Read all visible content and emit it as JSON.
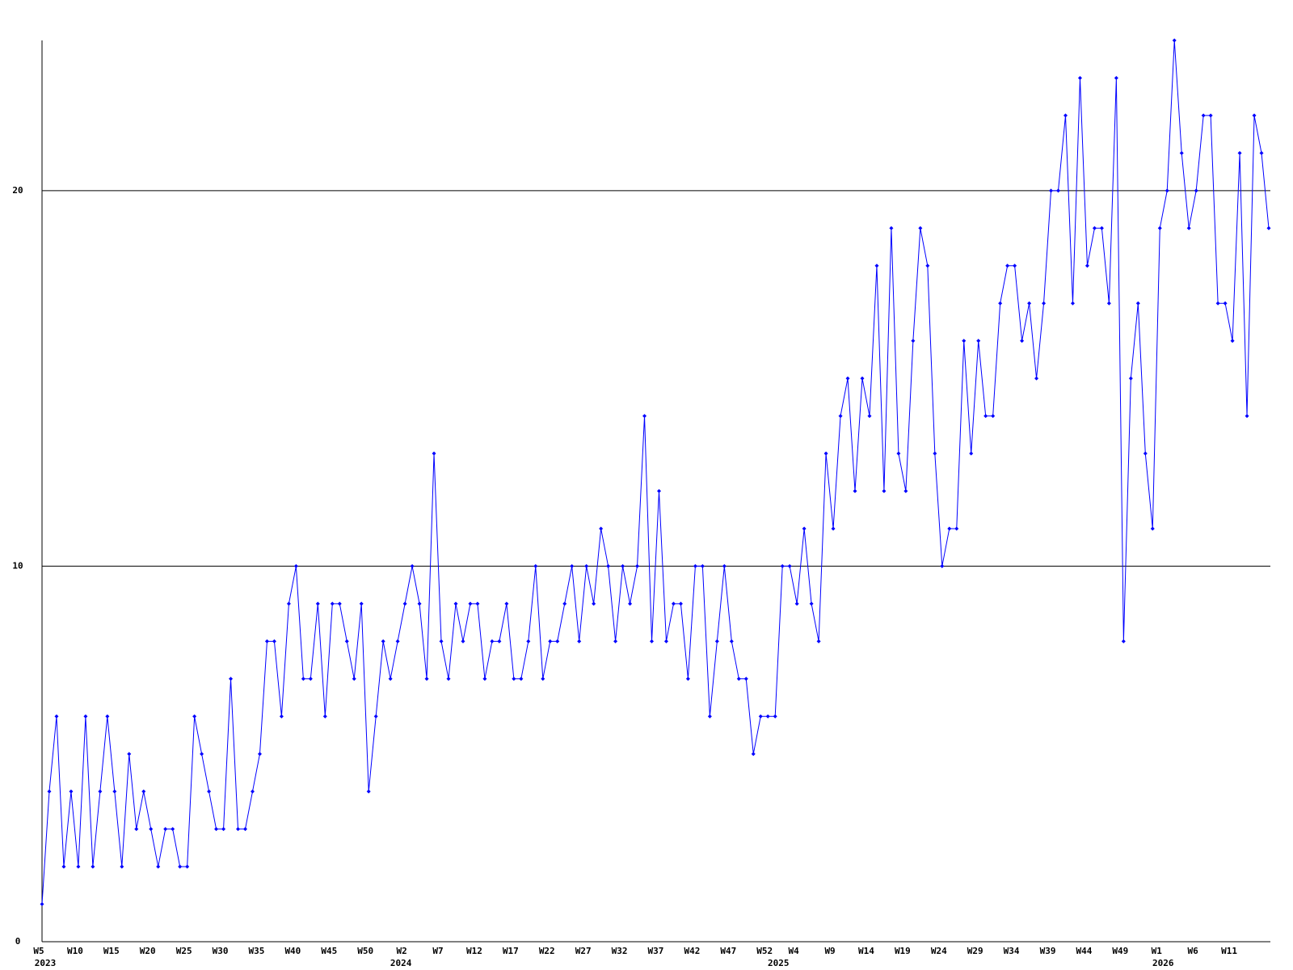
{
  "chart_data": {
    "type": "line",
    "categories": [
      "W5",
      null,
      null,
      null,
      null,
      "W10",
      null,
      null,
      null,
      null,
      "W15",
      null,
      null,
      null,
      null,
      "W20",
      null,
      null,
      null,
      null,
      "W25",
      null,
      null,
      null,
      null,
      "W30",
      null,
      null,
      null,
      null,
      "W35",
      null,
      null,
      null,
      null,
      "W40",
      null,
      null,
      null,
      null,
      "W45",
      null,
      null,
      null,
      null,
      "W50",
      null,
      null,
      null,
      null,
      "W2",
      null,
      null,
      null,
      null,
      "W7",
      null,
      null,
      null,
      null,
      "W12",
      null,
      null,
      null,
      null,
      "W17",
      null,
      null,
      null,
      null,
      "W22",
      null,
      null,
      null,
      null,
      "W27",
      null,
      null,
      null,
      null,
      "W32",
      null,
      null,
      null,
      null,
      "W37",
      null,
      null,
      null,
      null,
      "W42",
      null,
      null,
      null,
      null,
      "W47",
      null,
      null,
      null,
      null,
      "W52",
      null,
      null,
      null,
      "W4",
      null,
      null,
      null,
      null,
      "W9",
      null,
      null,
      null,
      null,
      "W14",
      null,
      null,
      null,
      null,
      "W19",
      null,
      null,
      null,
      null,
      "W24",
      null,
      null,
      null,
      null,
      "W29",
      null,
      null,
      null,
      null,
      "W34",
      null,
      null,
      null,
      null,
      "W39",
      null,
      null,
      null,
      null,
      "W44",
      null,
      null,
      null,
      null,
      "W49",
      null,
      null,
      null,
      null,
      "W1",
      null,
      null,
      null,
      null,
      "W6",
      null,
      null,
      null,
      null,
      "W11",
      null,
      null,
      null,
      null,
      null
    ],
    "x_group_labels": [
      {
        "at": 0,
        "label": "2023"
      },
      {
        "at": 49,
        "label": "2024"
      },
      {
        "at": 101,
        "label": "2025"
      },
      {
        "at": 154,
        "label": "2026"
      }
    ],
    "series": [
      {
        "color": "#0000ff",
        "values": [
          1,
          4,
          6,
          2,
          4,
          2,
          6,
          2,
          4,
          6,
          4,
          2,
          5,
          3,
          4,
          3,
          2,
          3,
          3,
          2,
          2,
          6,
          5,
          4,
          3,
          3,
          7,
          3,
          3,
          4,
          5,
          8,
          8,
          6,
          9,
          10,
          7,
          7,
          9,
          6,
          9,
          9,
          8,
          7,
          9,
          4,
          6,
          8,
          7,
          8,
          9,
          10,
          9,
          7,
          13,
          8,
          7,
          9,
          8,
          9,
          9,
          7,
          8,
          8,
          9,
          7,
          7,
          8,
          10,
          7,
          8,
          8,
          9,
          10,
          8,
          10,
          9,
          11,
          10,
          8,
          10,
          9,
          10,
          14,
          8,
          12,
          8,
          9,
          9,
          7,
          10,
          10,
          6,
          8,
          10,
          8,
          7,
          7,
          5,
          6,
          6,
          6,
          10,
          10,
          9,
          11,
          9,
          8,
          13,
          11,
          14,
          15,
          12,
          15,
          14,
          18,
          12,
          19,
          13,
          12,
          16,
          19,
          18,
          13,
          10,
          11,
          11,
          16,
          13,
          16,
          14,
          14,
          17,
          18,
          18,
          16,
          17,
          15,
          17,
          20,
          20,
          22,
          17,
          23,
          18,
          19,
          19,
          17,
          23,
          8,
          15,
          17,
          13,
          11,
          19,
          20,
          24,
          21,
          19,
          20,
          22,
          22,
          17,
          17,
          16,
          21,
          14,
          22,
          21,
          19
        ]
      }
    ],
    "ylim": [
      0,
      24
    ],
    "yticks": [
      0,
      10,
      20
    ],
    "grid": true
  }
}
